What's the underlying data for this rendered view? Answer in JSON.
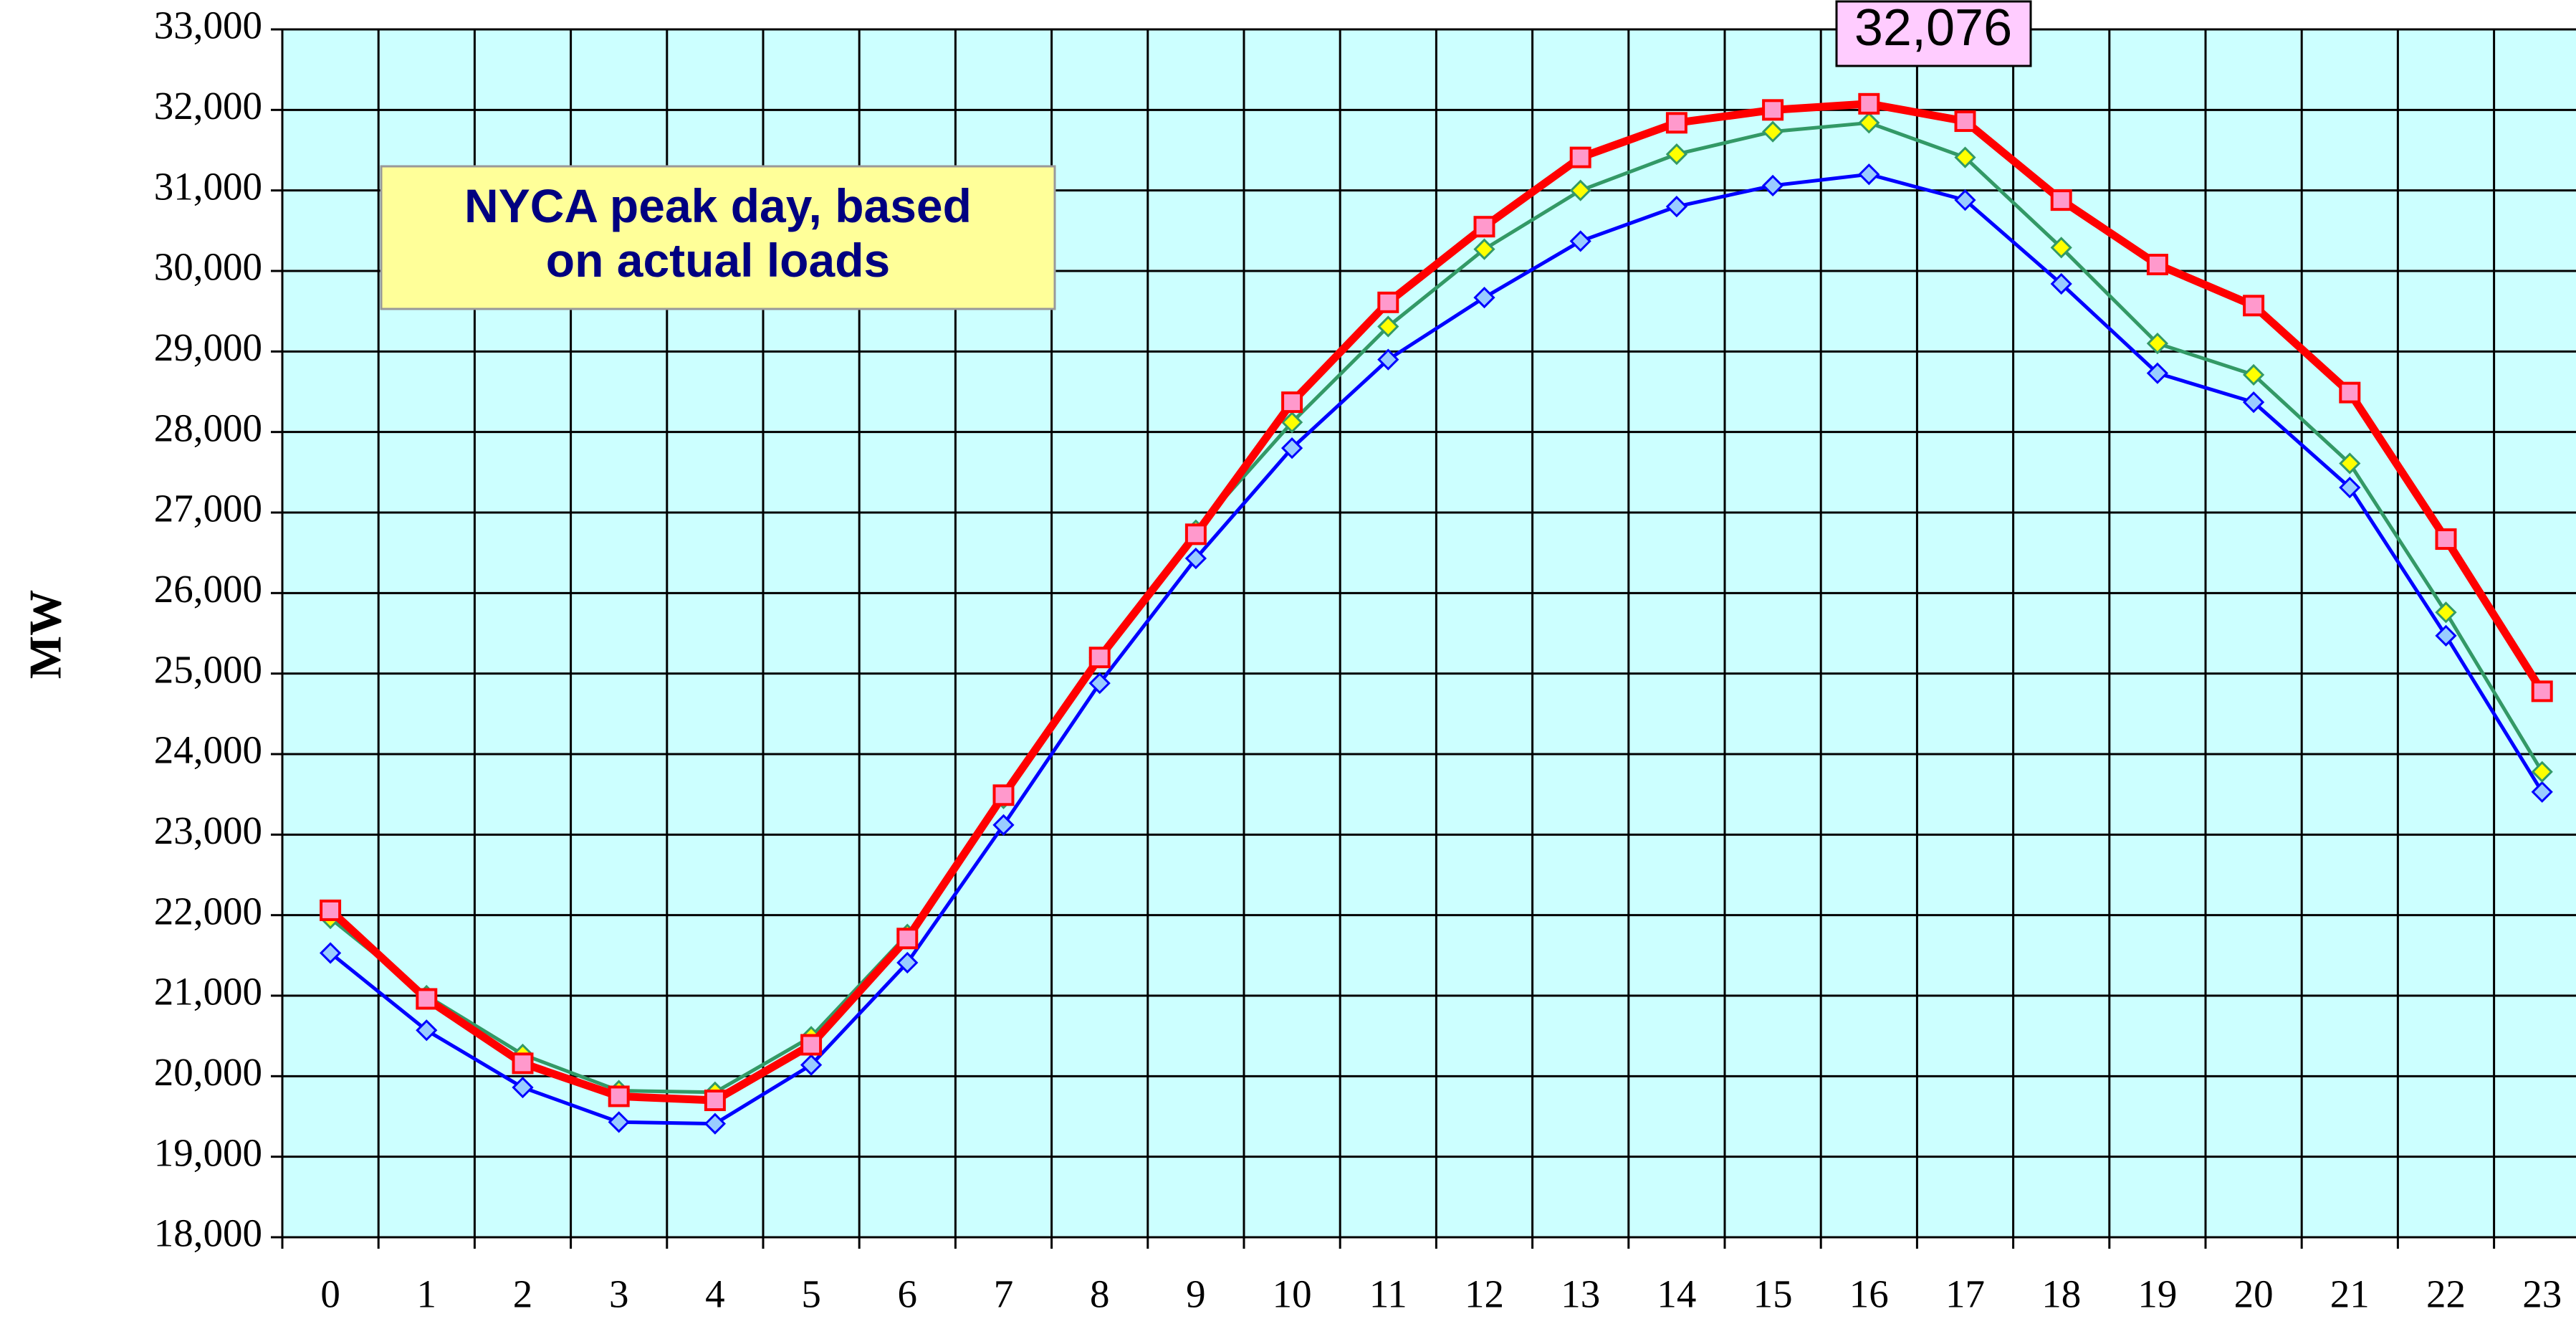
{
  "chart_data": {
    "type": "line",
    "ylabel": "MW",
    "annotations": [
      {
        "text": "NYCA peak day, based\non actual loads"
      },
      {
        "text": "32,076"
      }
    ],
    "categories": [
      "0",
      "1",
      "2",
      "3",
      "4",
      "5",
      "6",
      "7",
      "8",
      "9",
      "10",
      "11",
      "12",
      "13",
      "14",
      "15",
      "16",
      "17",
      "18",
      "19",
      "20",
      "21",
      "22",
      "23"
    ],
    "series": [
      {
        "color": "#0000ff",
        "marker": "diamond",
        "marker_fill": "#99ccff",
        "values": [
          21530,
          20570,
          19860,
          19430,
          19410,
          20140,
          21410,
          23120,
          24880,
          26430,
          27800,
          28900,
          29670,
          30370,
          30800,
          31060,
          31200,
          30880,
          29840,
          28730,
          28370,
          27310,
          25470,
          23530
        ]
      },
      {
        "color": "#339966",
        "marker": "diamond",
        "marker_fill": "#ffff00",
        "values": [
          21960,
          21000,
          20270,
          19820,
          19800,
          20490,
          21760,
          23450,
          25200,
          26780,
          28120,
          29310,
          30270,
          31000,
          31450,
          31730,
          31840,
          31410,
          30290,
          29100,
          28710,
          27610,
          25760,
          23780
        ]
      },
      {
        "color": "#ff0000",
        "marker": "square",
        "marker_fill": "#ff99cc",
        "values": [
          22060,
          20960,
          20160,
          19750,
          19700,
          20390,
          21710,
          23490,
          25200,
          26730,
          28370,
          29610,
          30550,
          31410,
          31840,
          32000,
          32076,
          31860,
          30880,
          30080,
          29570,
          28490,
          26670,
          24780
        ]
      }
    ],
    "ylim": [
      18000,
      33000
    ],
    "yticks": [
      {
        "value": 18000,
        "label": "18,000"
      },
      {
        "value": 19000,
        "label": "19,000"
      },
      {
        "value": 20000,
        "label": "20,000"
      },
      {
        "value": 21000,
        "label": "21,000"
      },
      {
        "value": 22000,
        "label": "22,000"
      },
      {
        "value": 23000,
        "label": "23,000"
      },
      {
        "value": 24000,
        "label": "24,000"
      },
      {
        "value": 25000,
        "label": "25,000"
      },
      {
        "value": 26000,
        "label": "26,000"
      },
      {
        "value": 27000,
        "label": "27,000"
      },
      {
        "value": 28000,
        "label": "28,000"
      },
      {
        "value": 29000,
        "label": "29,000"
      },
      {
        "value": 30000,
        "label": "30,000"
      },
      {
        "value": 31000,
        "label": "31,000"
      },
      {
        "value": 32000,
        "label": "32,000"
      },
      {
        "value": 33000,
        "label": "33,000"
      }
    ],
    "grid": true,
    "background": "#ccffff"
  }
}
